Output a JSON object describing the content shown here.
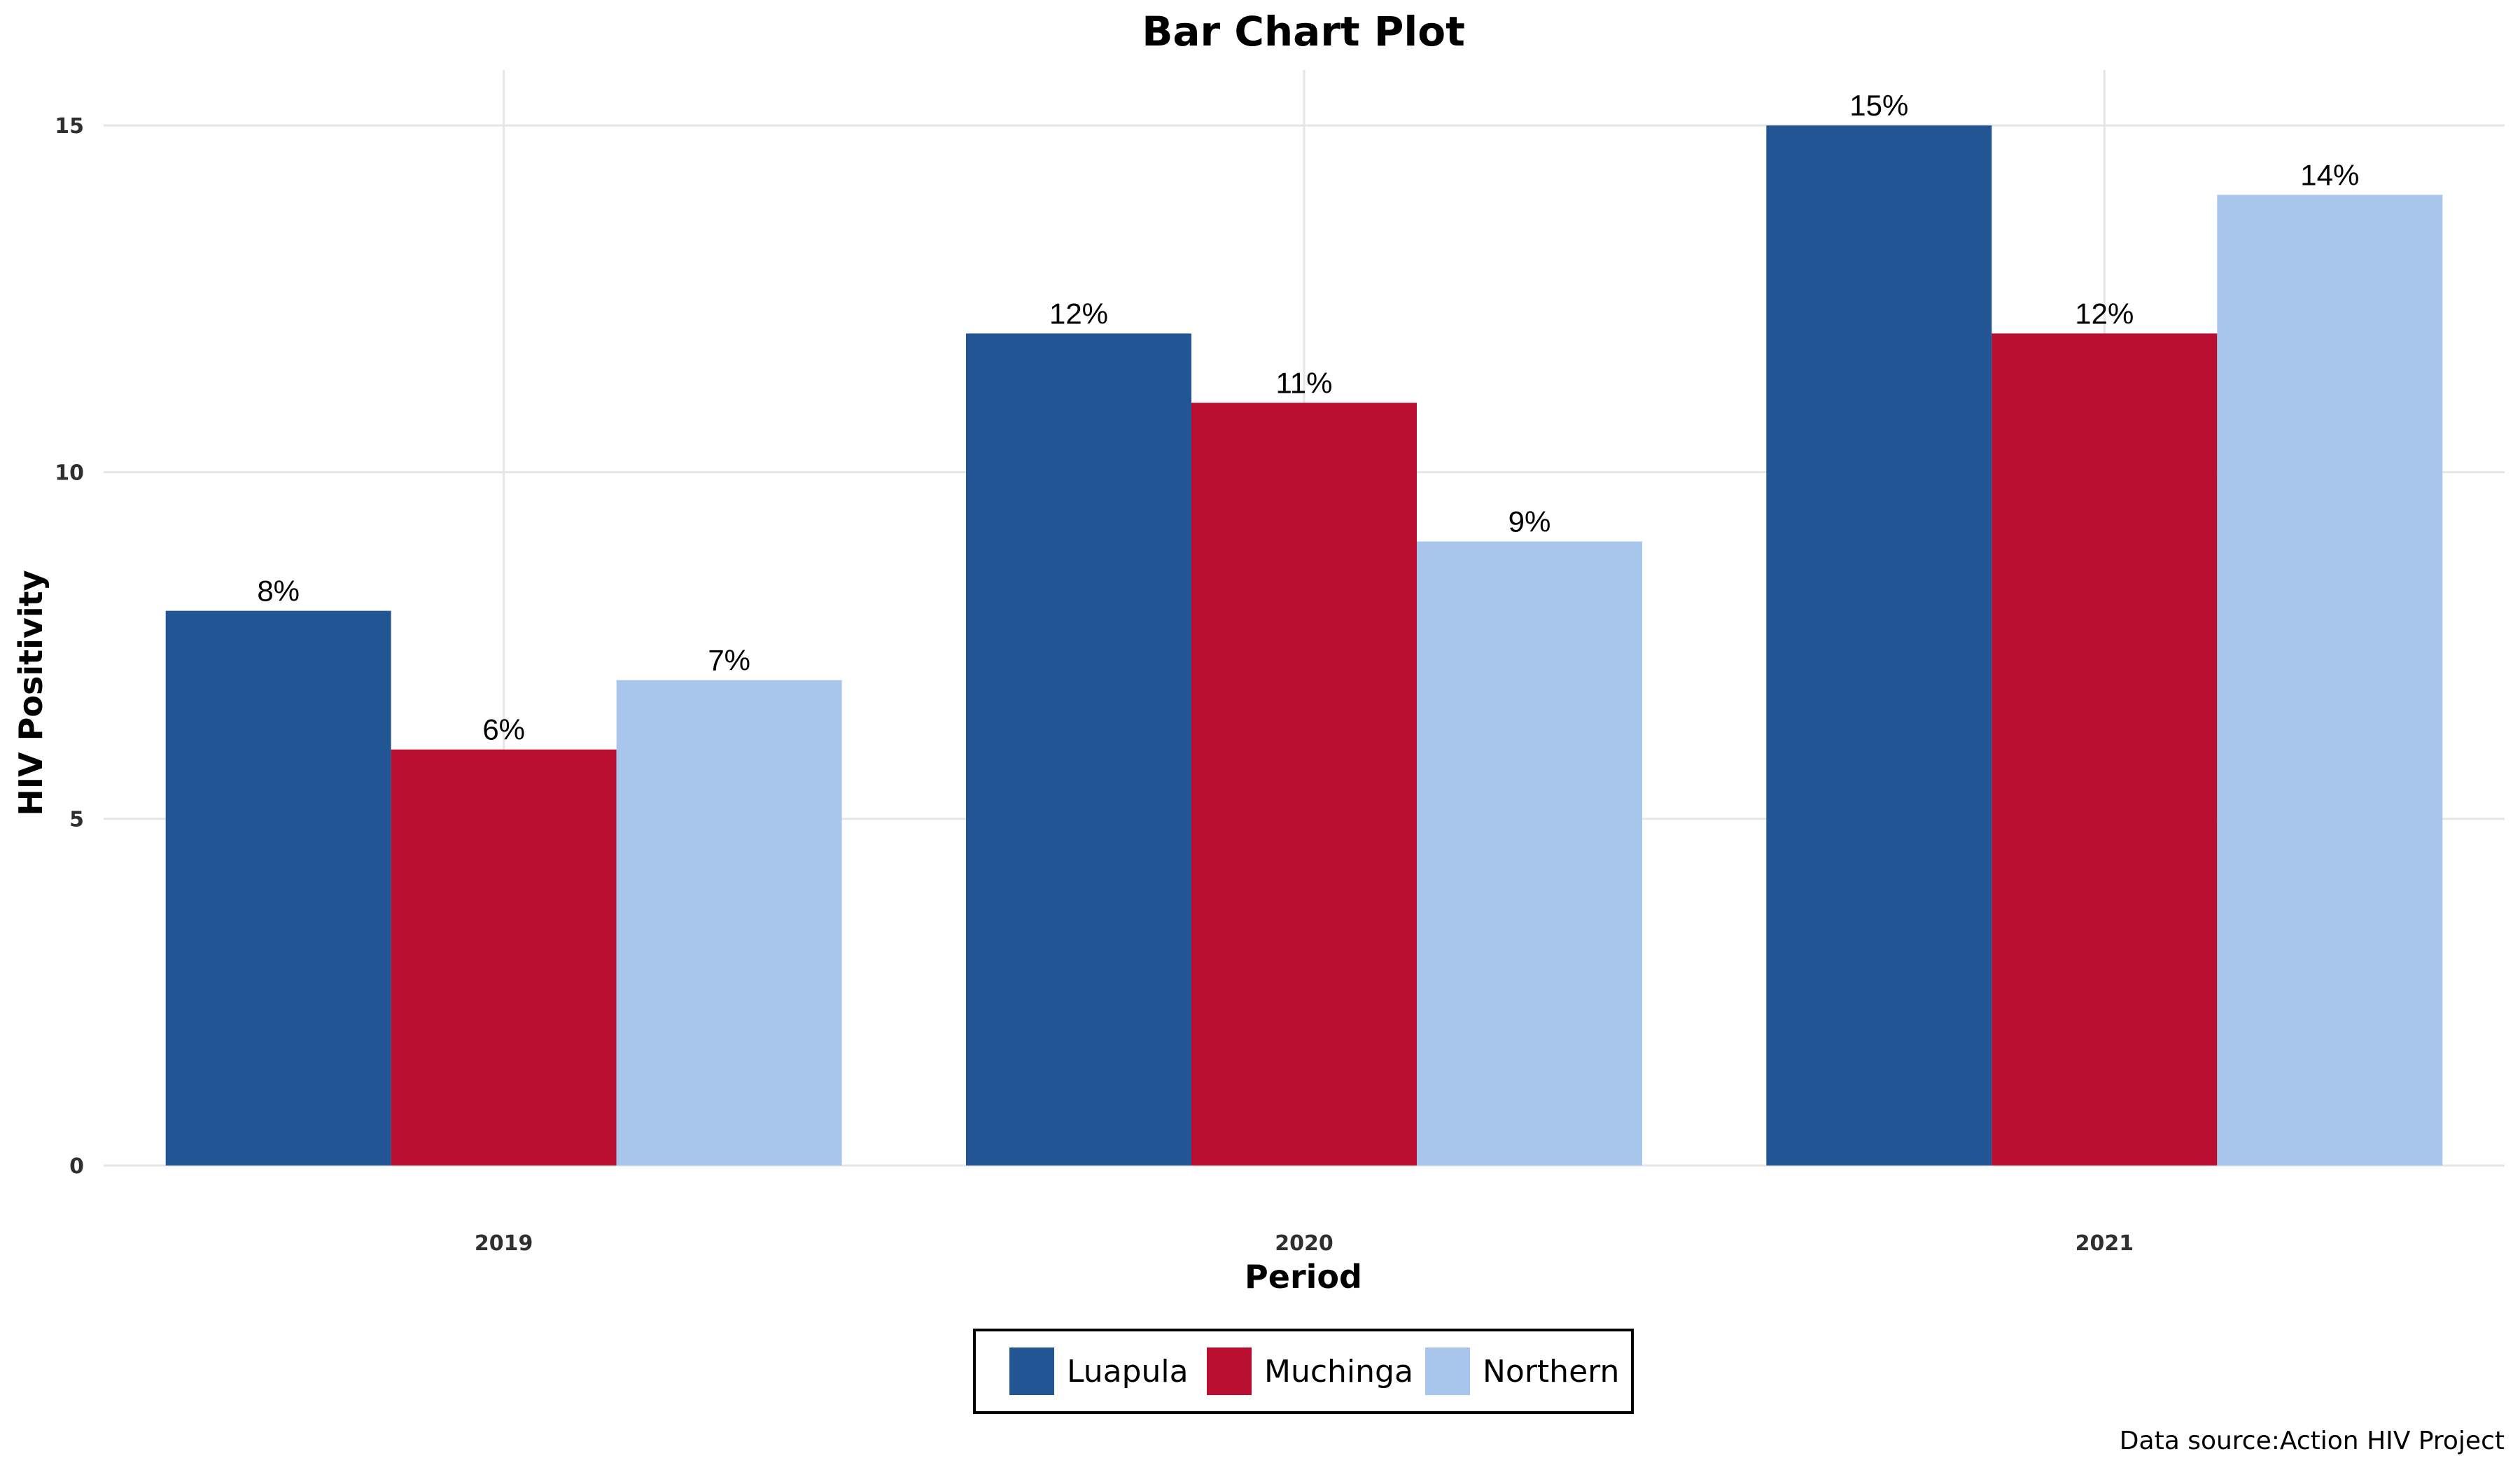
{
  "chart_data": {
    "type": "bar",
    "title": "Bar Chart Plot",
    "xlabel": "Period",
    "ylabel": "HIV Positivity",
    "categories": [
      "2019",
      "2020",
      "2021"
    ],
    "series": [
      {
        "name": "Luapula",
        "color": "#215594",
        "values": [
          8,
          12,
          15
        ],
        "labels": [
          "8%",
          "12%",
          "15%"
        ]
      },
      {
        "name": "Muchinga",
        "color": "#b90e2f",
        "values": [
          6,
          11,
          12
        ],
        "labels": [
          "6%",
          "11%",
          "12%"
        ]
      },
      {
        "name": "Northern",
        "color": "#a8c6ec",
        "values": [
          7,
          9,
          14
        ],
        "labels": [
          "7%",
          "9%",
          "14%"
        ]
      }
    ],
    "ylim": [
      0,
      15.8
    ],
    "yticks": [
      0,
      5,
      10,
      15
    ],
    "grid": true,
    "legend_position": "bottom",
    "caption": "Data source:Action HIV Project"
  }
}
